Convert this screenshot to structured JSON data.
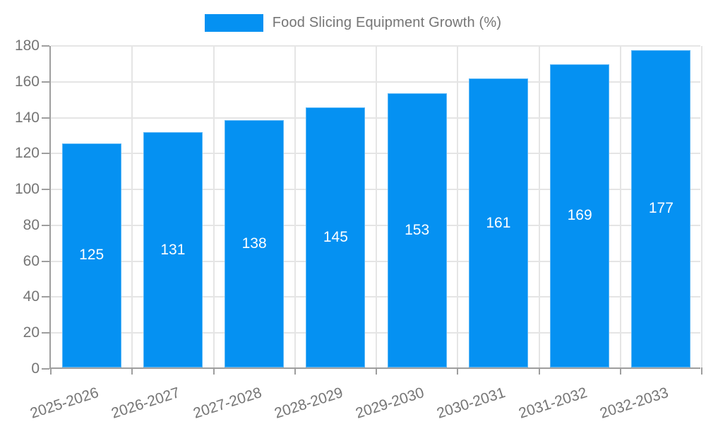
{
  "legend": {
    "label": "Food Slicing Equipment Growth (%)"
  },
  "colors": {
    "bar": "#0591f2",
    "grid": "#e5e5e5",
    "axis": "#9e9e9e",
    "axis_text": "#757575",
    "bar_label_text": "#ffffff"
  },
  "chart_data": {
    "type": "bar",
    "title": "Food Slicing Equipment Growth (%)",
    "categories": [
      "2025-2026",
      "2026-2027",
      "2027-2028",
      "2028-2029",
      "2029-2030",
      "2030-2031",
      "2031-2032",
      "2032-2033"
    ],
    "values": [
      125,
      131,
      138,
      145,
      153,
      161,
      169,
      177
    ],
    "series_name": "Food Slicing Equipment Growth (%)",
    "xlabel": "",
    "ylabel": "",
    "ylim": [
      0,
      180
    ],
    "ytick_step": 20,
    "ytick_labels": [
      "0",
      "20",
      "40",
      "60",
      "80",
      "100",
      "120",
      "140",
      "160",
      "180"
    ],
    "grid": true,
    "legend_position": "top",
    "x_label_rotation_deg": -18,
    "bar_value_labels_inside": true
  }
}
